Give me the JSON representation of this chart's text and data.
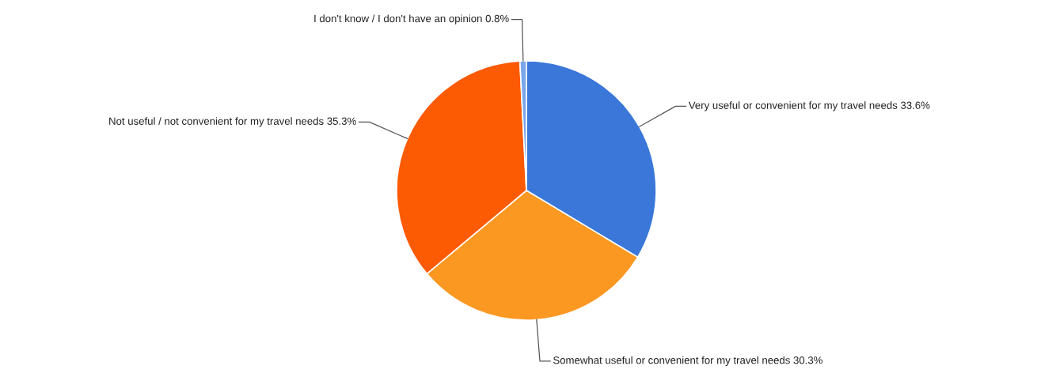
{
  "chart_data": {
    "type": "pie",
    "categories": [
      "Very useful or convenient for my travel needs",
      "Somewhat useful or convenient for my travel needs",
      "Not useful / not convenient for my travel needs",
      "I don't know / I don't have an opinion"
    ],
    "values": [
      33.6,
      30.3,
      35.3,
      0.8
    ],
    "value_labels": [
      "33.6%",
      "30.3%",
      "35.3%",
      "0.8%"
    ],
    "colors": [
      "#3a77d9",
      "#fb9822",
      "#fd5a04",
      "#7aa6ea"
    ],
    "legend": false
  }
}
